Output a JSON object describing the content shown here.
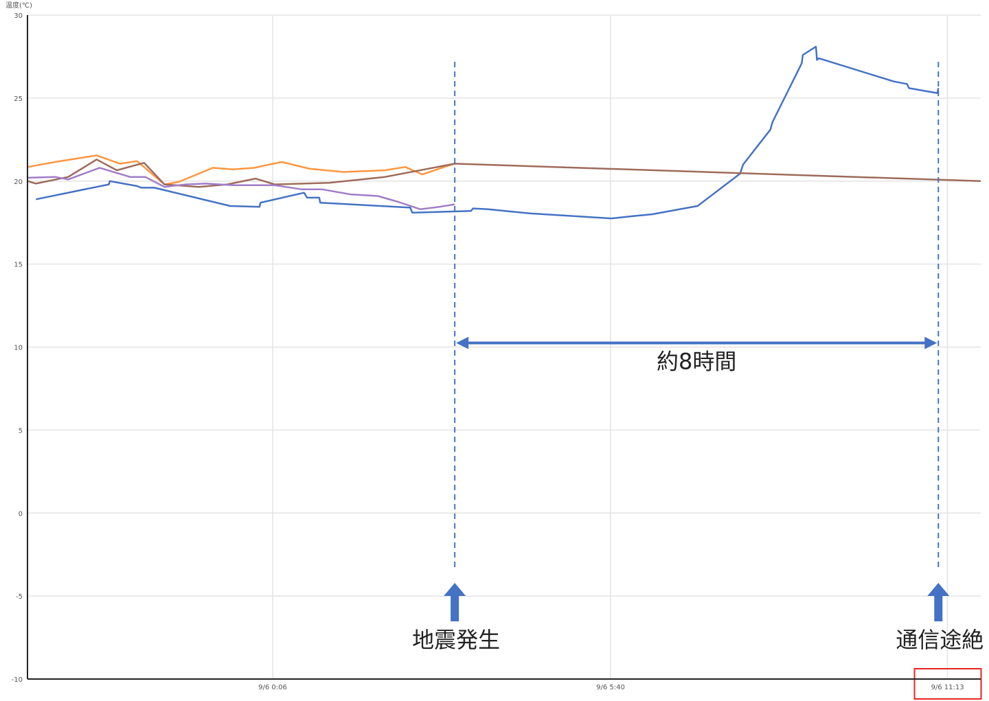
{
  "chart_data": {
    "type": "line",
    "title": "",
    "ylabel": "温度(℃)",
    "xlabel": "",
    "ylim": [
      -10,
      30
    ],
    "yticks": [
      30,
      25,
      20,
      15,
      10,
      5,
      0,
      -5,
      -10
    ],
    "xlim": [
      "9/5 20:04",
      "9/6 11:46"
    ],
    "xticks": [
      "9/6 0:06",
      "9/6 5:40",
      "9/6 11:13"
    ],
    "highlighted_xtick": "9/6 11:13",
    "highlight_color": "#e8231f",
    "grid": true,
    "legend": "none",
    "series": [
      {
        "color": "#4472c4",
        "points": [
          [
            "9/5 20:12",
            18.9
          ],
          [
            "9/5 21:24",
            19.8
          ],
          [
            "9/5 21:25",
            20.0
          ],
          [
            "9/5 21:52",
            19.7
          ],
          [
            "9/5 21:56",
            19.6
          ],
          [
            "9/5 22:09",
            19.6
          ],
          [
            "9/5 23:24",
            18.5
          ],
          [
            "9/5 23:53",
            18.45
          ],
          [
            "9/5 23:54",
            18.7
          ],
          [
            "9/6 0:37",
            19.3
          ],
          [
            "9/6 0:40",
            19.0
          ],
          [
            "9/6 0:52",
            19.0
          ],
          [
            "9/6 0:53",
            18.7
          ],
          [
            "9/6 2:22",
            18.4
          ],
          [
            "9/6 2:24",
            18.1
          ],
          [
            "9/6 3:22",
            18.2
          ],
          [
            "9/6 3:24",
            18.35
          ],
          [
            "9/6 3:39",
            18.3
          ],
          [
            "9/6 4:21",
            18.05
          ],
          [
            "9/6 5:41",
            17.75
          ],
          [
            "9/6 6:04",
            17.9
          ],
          [
            "9/6 6:21",
            18.0
          ],
          [
            "9/6 7:06",
            18.5
          ],
          [
            "9/6 7:48",
            20.45
          ],
          [
            "9/6 7:51",
            21.0
          ],
          [
            "9/6 8:18",
            23.1
          ],
          [
            "9/6 8:20",
            23.55
          ],
          [
            "9/6 8:49",
            27.1
          ],
          [
            "9/6 8:50",
            27.6
          ],
          [
            "9/6 9:03",
            28.1
          ],
          [
            "9/6 9:04",
            27.3
          ],
          [
            "9/6 9:06",
            27.4
          ],
          [
            "9/6 10:20",
            26.0
          ],
          [
            "9/6 10:33",
            25.85
          ],
          [
            "9/6 10:35",
            25.6
          ],
          [
            "9/6 11:03",
            25.3
          ],
          [
            "9/6 11:04",
            25.6
          ]
        ]
      },
      {
        "color": "#ff9640",
        "points": [
          [
            "9/5 20:04",
            20.85
          ],
          [
            "9/5 20:31",
            21.15
          ],
          [
            "9/5 21:12",
            21.55
          ],
          [
            "9/5 21:35",
            21.05
          ],
          [
            "9/5 21:52",
            21.2
          ],
          [
            "9/5 22:19",
            19.8
          ],
          [
            "9/5 22:33",
            19.95
          ],
          [
            "9/5 23:07",
            20.8
          ],
          [
            "9/5 23:27",
            20.7
          ],
          [
            "9/5 23:48",
            20.8
          ],
          [
            "9/6 0:15",
            21.15
          ],
          [
            "9/6 0:42",
            20.75
          ],
          [
            "9/6 1:16",
            20.55
          ],
          [
            "9/6 1:57",
            20.65
          ],
          [
            "9/6 2:17",
            20.85
          ],
          [
            "9/6 2:34",
            20.4
          ],
          [
            "9/6 2:58",
            20.9
          ],
          [
            "9/6 3:06",
            21.05
          ]
        ]
      },
      {
        "color": "#9e6b5a",
        "points": [
          [
            "9/5 20:04",
            20.0
          ],
          [
            "9/5 20:12",
            19.85
          ],
          [
            "9/5 20:44",
            20.25
          ],
          [
            "9/5 21:12",
            21.3
          ],
          [
            "9/5 21:32",
            20.65
          ],
          [
            "9/5 21:59",
            21.1
          ],
          [
            "9/5 22:19",
            19.8
          ],
          [
            "9/5 22:53",
            19.65
          ],
          [
            "9/5 23:21",
            19.8
          ],
          [
            "9/5 23:49",
            20.15
          ],
          [
            "9/6 0:08",
            19.8
          ],
          [
            "9/6 1:02",
            19.9
          ],
          [
            "9/6 1:57",
            20.25
          ],
          [
            "9/6 3:06",
            21.05
          ],
          [
            "9/6 11:46",
            20.0
          ]
        ]
      },
      {
        "color": "#a07cc8",
        "points": [
          [
            "9/5 20:04",
            20.2
          ],
          [
            "9/5 20:31",
            20.25
          ],
          [
            "9/5 20:44",
            20.1
          ],
          [
            "9/5 21:15",
            20.8
          ],
          [
            "9/5 21:45",
            20.25
          ],
          [
            "9/5 22:00",
            20.25
          ],
          [
            "9/5 22:19",
            19.65
          ],
          [
            "9/5 22:40",
            19.8
          ],
          [
            "9/5 23:00",
            19.85
          ],
          [
            "9/5 23:27",
            19.75
          ],
          [
            "9/6 0:08",
            19.75
          ],
          [
            "9/6 0:35",
            19.5
          ],
          [
            "9/6 0:55",
            19.5
          ],
          [
            "9/6 1:23",
            19.2
          ],
          [
            "9/6 1:50",
            19.1
          ],
          [
            "9/6 2:10",
            18.75
          ],
          [
            "9/6 2:32",
            18.3
          ],
          [
            "9/6 2:51",
            18.45
          ],
          [
            "9/6 3:06",
            18.6
          ]
        ]
      }
    ],
    "annotations": {
      "color": "#4472c4",
      "earthquake": {
        "time": "9/6 3:06",
        "label": "地震発生"
      },
      "comm_lost": {
        "time": "9/6 11:04",
        "label": "通信途絶"
      },
      "span": {
        "value": 10,
        "label": "約8時間"
      }
    }
  }
}
